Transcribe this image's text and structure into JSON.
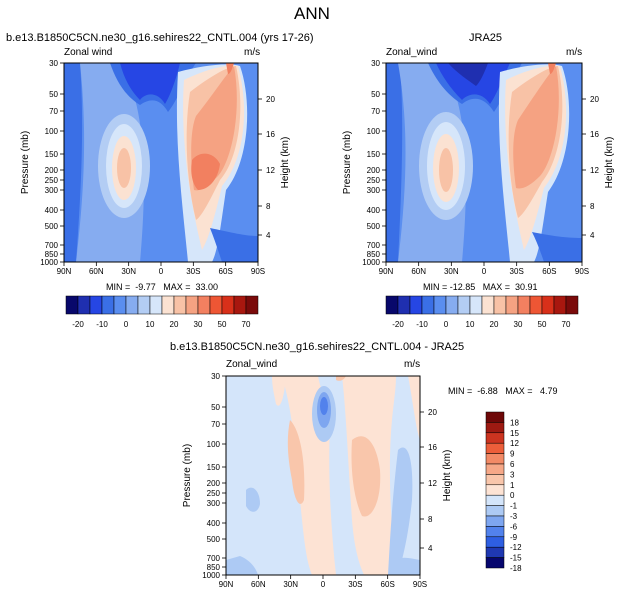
{
  "title": "ANN",
  "colors": {
    "axis": "#000000",
    "lbar": [
      "#08086b",
      "#1f2fb0",
      "#2646e4",
      "#3a6fe6",
      "#5a8ef0",
      "#86acf0",
      "#b3cdf4",
      "#d6e6fa",
      "#fbe2d2",
      "#f8c2a6",
      "#f5a282",
      "#f28060",
      "#ee5634",
      "#d8301a",
      "#a8170f",
      "#7a0a0a"
    ],
    "dbar": [
      "#06066e",
      "#1f38b2",
      "#2e5fe2",
      "#5282ec",
      "#7ea6f0",
      "#adcaf4",
      "#d4e5fa",
      "#fde3d4",
      "#f9c6ab",
      "#f6a888",
      "#f28a66",
      "#ec5e3a",
      "#cc3420",
      "#9e1a12",
      "#6e0808"
    ]
  },
  "left": {
    "title": "b.e13.B1850C5CN.ne30_g16.sehires22_CNTL.004 (yrs 17-26)",
    "var": "Zonal wind",
    "units": "m/s",
    "minmax": "MIN =  -9.77   MAX =  33.00"
  },
  "right": {
    "title": "JRA25",
    "var": "Zonal_wind",
    "units": "m/s",
    "minmax": "MIN = -12.85   MAX =  30.91"
  },
  "bottom": {
    "title": "b.e13.B1850C5CN.ne30_g16.sehires22_CNTL.004 - JRA25",
    "var": "Zonal_wind",
    "units": "m/s",
    "minmax": "MIN =  -6.88   MAX =   4.79"
  },
  "chart_data": [
    {
      "type": "heatmap",
      "panel": "left",
      "x_ticks": [
        "90N",
        "60N",
        "30N",
        "0",
        "30S",
        "60S",
        "90S"
      ],
      "y_ticks": [
        "30",
        "50",
        "70",
        "100",
        "150",
        "200",
        "250",
        "300",
        "400",
        "500",
        "700",
        "850",
        "1000"
      ],
      "ylabel": "Pressure (mb)",
      "y2label": "Height (km)",
      "y2_ticks": [
        "20",
        "16",
        "12",
        "8",
        "4"
      ],
      "legend_levels": [
        "-20",
        "-10",
        "0",
        "10",
        "20",
        "30",
        "50",
        "70"
      ],
      "min": -9.77,
      "max": 33.0
    },
    {
      "type": "heatmap",
      "panel": "right",
      "x_ticks": [
        "90N",
        "60N",
        "30N",
        "0",
        "30S",
        "60S",
        "90S"
      ],
      "y_ticks": [
        "30",
        "50",
        "70",
        "100",
        "150",
        "200",
        "250",
        "300",
        "400",
        "500",
        "700",
        "850",
        "1000"
      ],
      "ylabel": "Pressure (mb)",
      "y2label": "Height (km)",
      "y2_ticks": [
        "20",
        "16",
        "12",
        "8",
        "4"
      ],
      "legend_levels": [
        "-20",
        "-10",
        "0",
        "10",
        "20",
        "30",
        "50",
        "70"
      ],
      "min": -12.85,
      "max": 30.91
    },
    {
      "type": "heatmap",
      "panel": "bottom",
      "x_ticks": [
        "90N",
        "60N",
        "30N",
        "0",
        "30S",
        "60S",
        "90S"
      ],
      "y_ticks": [
        "30",
        "50",
        "70",
        "100",
        "150",
        "200",
        "250",
        "300",
        "400",
        "500",
        "700",
        "850",
        "1000"
      ],
      "ylabel": "Pressure (mb)",
      "y2label": "Height (km)",
      "y2_ticks": [
        "20",
        "16",
        "12",
        "8",
        "4"
      ],
      "legend_levels": [
        "18",
        "15",
        "12",
        "9",
        "6",
        "3",
        "1",
        "0",
        "-1",
        "-3",
        "-6",
        "-9",
        "-12",
        "-15",
        "-18"
      ],
      "min": -6.88,
      "max": 4.79
    }
  ]
}
